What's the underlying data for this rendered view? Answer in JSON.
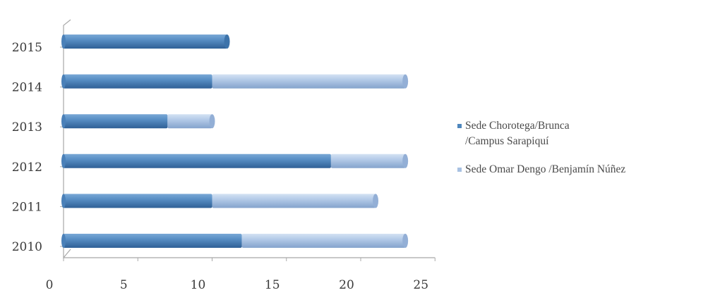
{
  "chart_data": {
    "type": "bar",
    "orientation": "horizontal",
    "stacked": true,
    "style": "3d-cylinder",
    "categories": [
      "2010",
      "2011",
      "2012",
      "2013",
      "2014",
      "2015"
    ],
    "series": [
      {
        "name": "Sede Chorotega/Brunca /Campus Sarapiquí",
        "values": [
          12,
          10,
          18,
          7,
          10,
          11
        ],
        "color": "#4f87bd"
      },
      {
        "name": "Sede Omar Dengo /Benjamín Núñez",
        "values": [
          11,
          11,
          5,
          3,
          13,
          0
        ],
        "color": "#a8c1e2"
      }
    ],
    "xlim": [
      0,
      25
    ],
    "xticks": [
      "0",
      "5",
      "10",
      "15",
      "20",
      "25"
    ],
    "grid": false,
    "legend_position": "right"
  }
}
